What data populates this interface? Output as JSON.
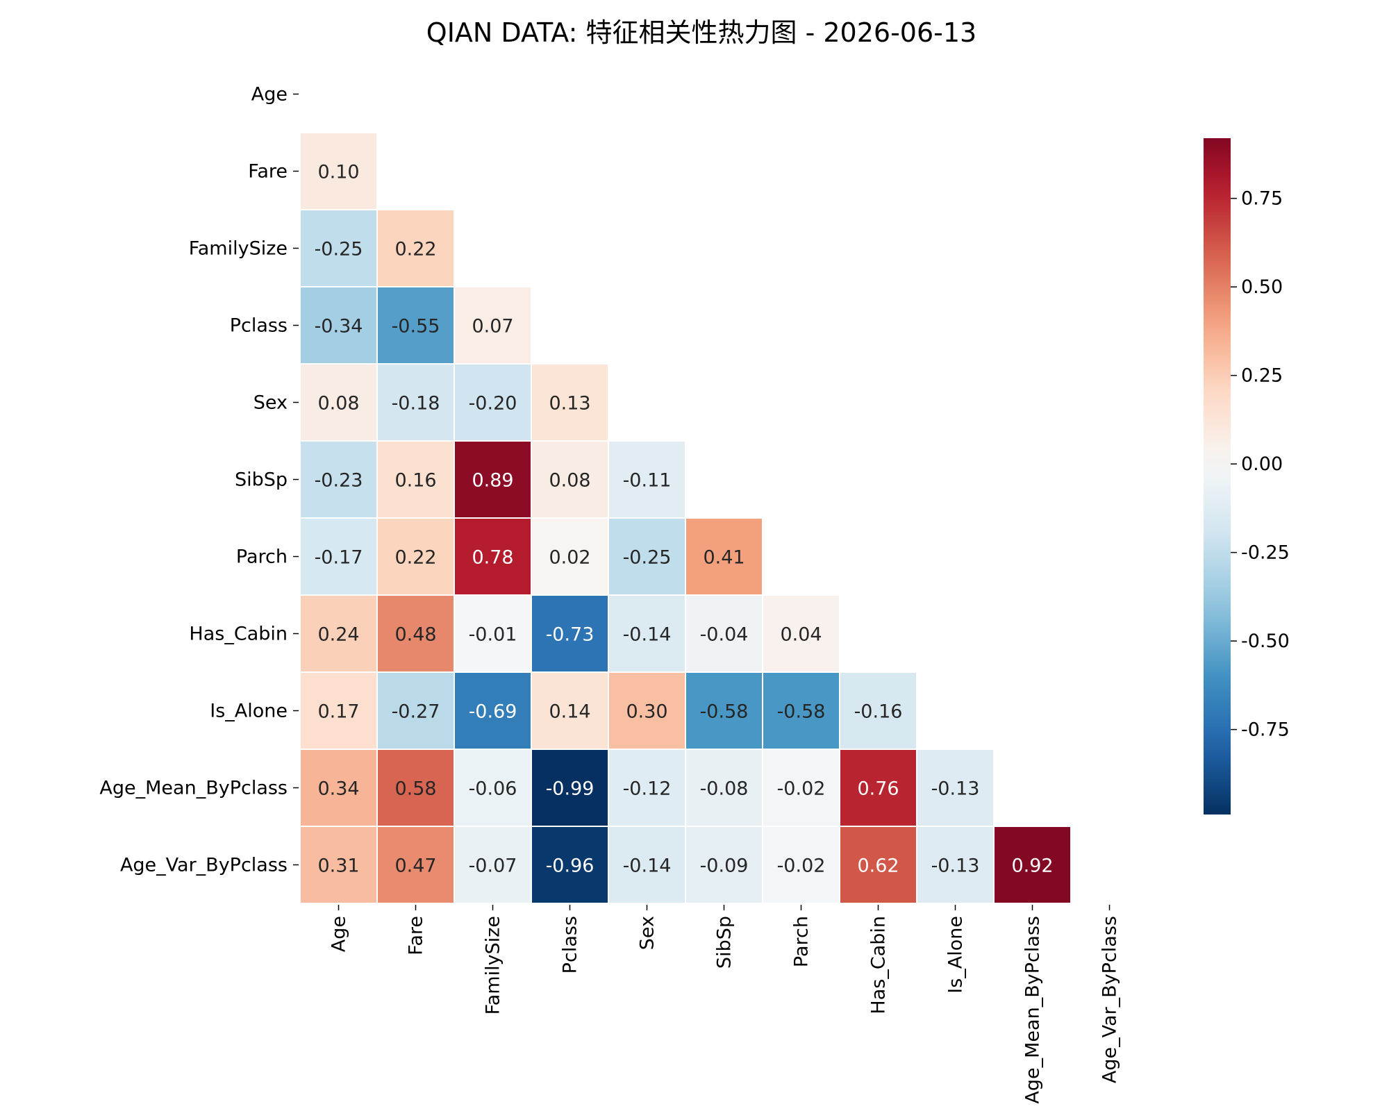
{
  "chart_data": {
    "type": "heatmap",
    "title": "QIAN DATA: 特征相关性热力图 - 2026-06-13",
    "labels": [
      "Age",
      "Fare",
      "FamilySize",
      "Pclass",
      "Sex",
      "SibSp",
      "Parch",
      "Has_Cabin",
      "Is_Alone",
      "Age_Mean_ByPclass",
      "Age_Var_ByPclass"
    ],
    "mask": "upper-triangle-including-diagonal",
    "rows": [
      [],
      [
        0.1
      ],
      [
        -0.25,
        0.22
      ],
      [
        -0.34,
        -0.55,
        0.07
      ],
      [
        0.08,
        -0.18,
        -0.2,
        0.13
      ],
      [
        -0.23,
        0.16,
        0.89,
        0.08,
        -0.11
      ],
      [
        -0.17,
        0.22,
        0.78,
        0.02,
        -0.25,
        0.41
      ],
      [
        0.24,
        0.48,
        -0.01,
        -0.73,
        -0.14,
        -0.04,
        0.04
      ],
      [
        0.17,
        -0.27,
        -0.69,
        0.14,
        0.3,
        -0.58,
        -0.58,
        -0.16
      ],
      [
        0.34,
        0.58,
        -0.06,
        -0.99,
        -0.12,
        -0.08,
        -0.02,
        0.76,
        -0.13
      ],
      [
        0.31,
        0.47,
        -0.07,
        -0.96,
        -0.14,
        -0.09,
        -0.02,
        0.62,
        -0.13,
        0.92
      ]
    ],
    "value_format": "2 decimals",
    "colormap": "RdBu_r",
    "colorbar": {
      "vmin": -0.99,
      "vmax": 0.92,
      "ticks": [
        -0.75,
        -0.5,
        -0.25,
        0.0,
        0.25,
        0.5,
        0.75
      ],
      "tick_labels": [
        "-0.75",
        "-0.50",
        "-0.25",
        "0.00",
        "0.25",
        "0.50",
        "0.75"
      ]
    },
    "colors": {
      "low": "#053061",
      "mid": "#f7f7f7",
      "high": "#67001f",
      "cell_border": "#ffffff"
    },
    "xlabel": "",
    "ylabel": ""
  }
}
